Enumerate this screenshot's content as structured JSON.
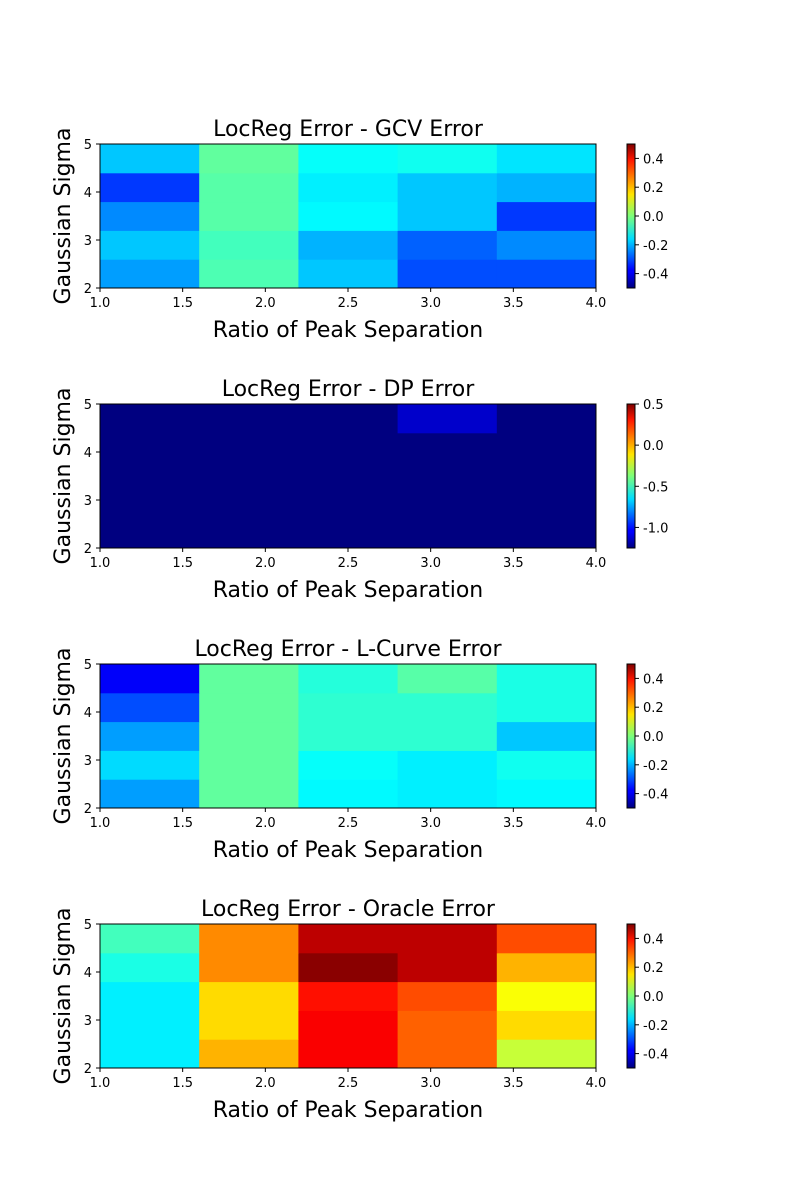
{
  "chart_data": [
    {
      "type": "heatmap",
      "title": "LocReg Error - GCV Error",
      "xlabel": "Ratio of Peak Separation",
      "ylabel": "Gaussian Sigma",
      "xlim": [
        1.0,
        4.0
      ],
      "ylim": [
        2,
        5
      ],
      "x_ticks": [
        "1.0",
        "1.5",
        "2.0",
        "2.5",
        "3.0",
        "3.5",
        "4.0"
      ],
      "y_ticks": [
        "2",
        "3",
        "4",
        "5"
      ],
      "colormap": "jet",
      "clim": [
        -0.5,
        0.5
      ],
      "colorbar_ticks": [
        "-0.4",
        "-0.2",
        "0.0",
        "0.2",
        "0.4"
      ],
      "x_centers": [
        1.3,
        1.9,
        2.5,
        3.1,
        3.7
      ],
      "y_centers": [
        2.3,
        2.9,
        3.5,
        4.1,
        4.7
      ],
      "values": [
        [
          -0.22,
          -0.05,
          -0.18,
          -0.3,
          -0.3
        ],
        [
          -0.18,
          -0.06,
          -0.2,
          -0.28,
          -0.24
        ],
        [
          -0.24,
          -0.04,
          -0.13,
          -0.18,
          -0.32
        ],
        [
          -0.32,
          -0.04,
          -0.14,
          -0.18,
          -0.2
        ],
        [
          -0.18,
          -0.03,
          -0.12,
          -0.11,
          -0.15
        ]
      ]
    },
    {
      "type": "heatmap",
      "title": "LocReg Error - DP Error",
      "xlabel": "Ratio of Peak Separation",
      "ylabel": "Gaussian Sigma",
      "xlim": [
        1.0,
        4.0
      ],
      "ylim": [
        2,
        5
      ],
      "x_ticks": [
        "1.0",
        "1.5",
        "2.0",
        "2.5",
        "3.0",
        "3.5",
        "4.0"
      ],
      "y_ticks": [
        "2",
        "3",
        "4",
        "5"
      ],
      "colormap": "jet",
      "clim": [
        -1.25,
        0.5
      ],
      "colorbar_ticks": [
        "-1.0",
        "-0.5",
        "0.0",
        "0.5"
      ],
      "x_centers": [
        1.3,
        1.9,
        2.5,
        3.1,
        3.7
      ],
      "y_centers": [
        2.3,
        2.9,
        3.5,
        4.1,
        4.7
      ],
      "values": [
        [
          -1.25,
          -1.25,
          -1.25,
          -1.25,
          -1.25
        ],
        [
          -1.25,
          -1.25,
          -1.25,
          -1.25,
          -1.25
        ],
        [
          -1.25,
          -1.25,
          -1.25,
          -1.25,
          -1.25
        ],
        [
          -1.25,
          -1.25,
          -1.25,
          -1.25,
          -1.25
        ],
        [
          -1.25,
          -1.25,
          -1.25,
          -1.12,
          -1.25
        ]
      ]
    },
    {
      "type": "heatmap",
      "title": "LocReg Error - L-Curve Error",
      "xlabel": "Ratio of Peak Separation",
      "ylabel": "Gaussian Sigma",
      "xlim": [
        1.0,
        4.0
      ],
      "ylim": [
        2,
        5
      ],
      "x_ticks": [
        "1.0",
        "1.5",
        "2.0",
        "2.5",
        "3.0",
        "3.5",
        "4.0"
      ],
      "y_ticks": [
        "2",
        "3",
        "4",
        "5"
      ],
      "colormap": "jet",
      "clim": [
        -0.5,
        0.5
      ],
      "colorbar_ticks": [
        "-0.4",
        "-0.2",
        "0.0",
        "0.2",
        "0.4"
      ],
      "x_centers": [
        1.3,
        1.9,
        2.5,
        3.1,
        3.7
      ],
      "y_centers": [
        2.3,
        2.9,
        3.5,
        4.1,
        4.7
      ],
      "values": [
        [
          -0.22,
          -0.03,
          -0.13,
          -0.14,
          -0.13
        ],
        [
          -0.16,
          -0.03,
          -0.12,
          -0.14,
          -0.11
        ],
        [
          -0.22,
          -0.03,
          -0.08,
          -0.08,
          -0.18
        ],
        [
          -0.3,
          -0.03,
          -0.08,
          -0.08,
          -0.1
        ],
        [
          -0.38,
          -0.03,
          -0.09,
          -0.04,
          -0.1
        ]
      ]
    },
    {
      "type": "heatmap",
      "title": "LocReg Error - Oracle Error",
      "xlabel": "Ratio of Peak Separation",
      "ylabel": "Gaussian Sigma",
      "xlim": [
        1.0,
        4.0
      ],
      "ylim": [
        2,
        5
      ],
      "x_ticks": [
        "1.0",
        "1.5",
        "2.0",
        "2.5",
        "3.0",
        "3.5",
        "4.0"
      ],
      "y_ticks": [
        "2",
        "3",
        "4",
        "5"
      ],
      "colormap": "jet",
      "clim": [
        -0.5,
        0.5
      ],
      "colorbar_ticks": [
        "-0.4",
        "-0.2",
        "0.0",
        "0.2",
        "0.4"
      ],
      "x_centers": [
        1.3,
        1.9,
        2.5,
        3.1,
        3.7
      ],
      "y_centers": [
        2.3,
        2.9,
        3.5,
        4.1,
        4.7
      ],
      "values": [
        [
          -0.14,
          0.2,
          0.38,
          0.28,
          0.07
        ],
        [
          -0.14,
          0.16,
          0.38,
          0.28,
          0.16
        ],
        [
          -0.14,
          0.16,
          0.36,
          0.3,
          0.12
        ],
        [
          -0.1,
          0.24,
          0.49,
          0.44,
          0.2
        ],
        [
          -0.06,
          0.24,
          0.44,
          0.44,
          0.3
        ]
      ]
    }
  ]
}
